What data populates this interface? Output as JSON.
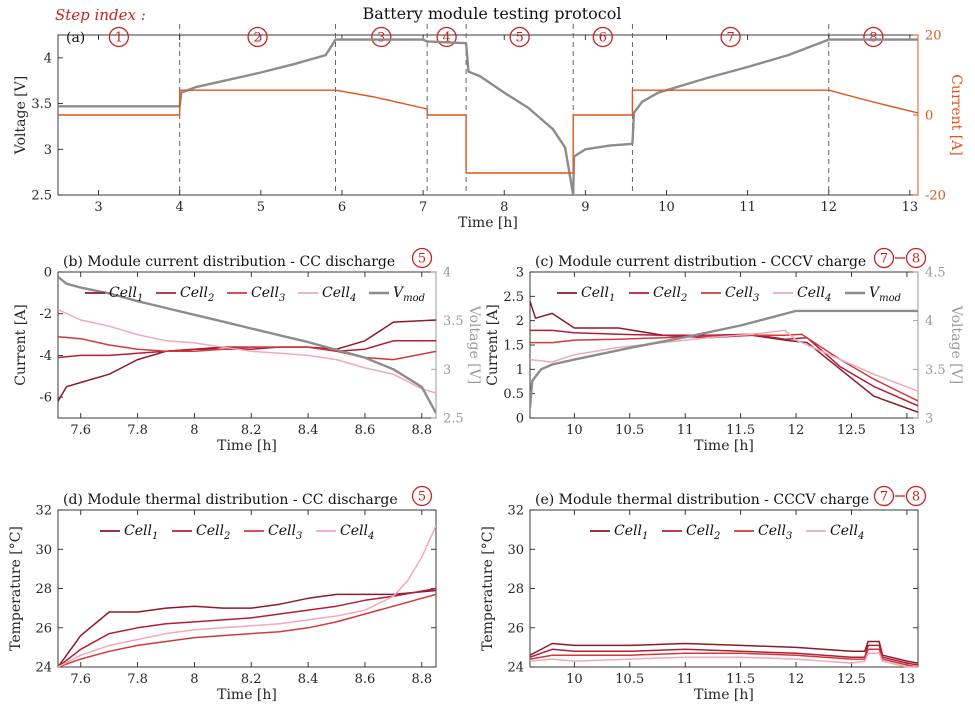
{
  "figure_title": "Battery module testing protocol",
  "step_index_label": "Step index :",
  "colors": {
    "voltage": "#8c8c8c",
    "current": "#e0541c",
    "cell1": "#8b1a2e",
    "cell2": "#b31d38",
    "cell3": "#d23a3a",
    "cell4": "#f0a9bd",
    "vmod": "#8c8c8c",
    "step_marker": "#cc1f1f",
    "frame": "#262626"
  },
  "chart_data": [
    {
      "id": "a",
      "type": "line",
      "panel_label": "(a)",
      "title": "",
      "xlabel": "Time [h]",
      "ylabel": "Voltage [V]",
      "ylabel_right": "Current [A]",
      "xlim": [
        2.5,
        13.1
      ],
      "ylim": [
        2.5,
        4.25
      ],
      "ylim_right": [
        -20,
        20
      ],
      "xticks": [
        3,
        4,
        5,
        6,
        7,
        8,
        9,
        10,
        11,
        12,
        13
      ],
      "yticks": [
        2.5,
        3,
        3.5,
        4
      ],
      "yticks_right": [
        -20,
        0,
        20
      ],
      "step_boundaries": [
        4,
        5.92,
        7.05,
        7.53,
        8.85,
        9.58,
        12
      ],
      "step_labels": [
        "1",
        "2",
        "3",
        "4",
        "5",
        "6",
        "7",
        "8"
      ],
      "series": [
        {
          "name": "Voltage",
          "axis": "left",
          "x": [
            2.5,
            4.0,
            4.02,
            4.2,
            4.6,
            5.0,
            5.4,
            5.8,
            5.92,
            6.3,
            7.0,
            7.05,
            7.53,
            7.56,
            7.7,
            8.0,
            8.3,
            8.6,
            8.75,
            8.85,
            8.86,
            9.0,
            9.3,
            9.58,
            9.6,
            9.7,
            9.9,
            10.5,
            11.0,
            11.5,
            12.0,
            13.1
          ],
          "y": [
            3.47,
            3.47,
            3.62,
            3.68,
            3.76,
            3.84,
            3.93,
            4.03,
            4.2,
            4.2,
            4.2,
            4.18,
            4.16,
            3.85,
            3.8,
            3.62,
            3.45,
            3.22,
            3.02,
            2.5,
            2.92,
            3.0,
            3.04,
            3.06,
            3.4,
            3.52,
            3.62,
            3.78,
            3.9,
            4.03,
            4.2,
            4.2
          ]
        },
        {
          "name": "Current",
          "axis": "right",
          "x": [
            2.5,
            4.0,
            4.0,
            5.92,
            5.92,
            6.4,
            7.05,
            7.05,
            7.53,
            7.53,
            8.85,
            8.85,
            9.58,
            9.58,
            12.0,
            12.0,
            12.5,
            13.1
          ],
          "y": [
            0,
            0,
            6.2,
            6.2,
            6.2,
            4.5,
            1.5,
            0,
            0,
            -14.5,
            -14.5,
            0,
            0,
            6.2,
            6.2,
            6.2,
            3.5,
            0.5
          ]
        }
      ]
    },
    {
      "id": "b",
      "type": "line",
      "panel_label": "(b)",
      "title": "Module current distribution - CC discharge",
      "step_badges": [
        "5"
      ],
      "xlabel": "Time [h]",
      "ylabel": "Current [A]",
      "ylabel_right": "Voltage [V]",
      "xlim": [
        7.52,
        8.85
      ],
      "ylim": [
        -7,
        0
      ],
      "ylim_right": [
        2.5,
        4
      ],
      "xticks": [
        7.6,
        7.8,
        8,
        8.2,
        8.4,
        8.6,
        8.8
      ],
      "xtick_labels": [
        "7.6",
        "7.8",
        "8",
        "8.2",
        "8.4",
        "8.6",
        "8.8"
      ],
      "yticks": [
        -6,
        -4,
        -2,
        0
      ],
      "yticks_right": [
        2.5,
        3,
        3.5,
        4
      ],
      "legend": [
        "Cell1",
        "Cell2",
        "Cell3",
        "Cell4",
        "Vmod"
      ],
      "series": [
        {
          "name": "Cell1",
          "axis": "left",
          "x": [
            7.52,
            7.55,
            7.6,
            7.7,
            7.8,
            7.9,
            8.0,
            8.1,
            8.2,
            8.3,
            8.4,
            8.5,
            8.6,
            8.7,
            8.85
          ],
          "y": [
            -6.2,
            -5.5,
            -5.3,
            -4.9,
            -4.2,
            -3.8,
            -3.7,
            -3.6,
            -3.6,
            -3.6,
            -3.6,
            -3.7,
            -3.3,
            -2.4,
            -2.3
          ]
        },
        {
          "name": "Cell2",
          "axis": "left",
          "x": [
            7.52,
            7.6,
            7.7,
            7.8,
            7.9,
            8.0,
            8.1,
            8.2,
            8.3,
            8.4,
            8.5,
            8.6,
            8.7,
            8.85
          ],
          "y": [
            -4.1,
            -4.0,
            -4.0,
            -3.9,
            -3.8,
            -3.7,
            -3.7,
            -3.7,
            -3.6,
            -3.6,
            -3.8,
            -3.7,
            -3.3,
            -3.3
          ]
        },
        {
          "name": "Cell3",
          "axis": "left",
          "x": [
            7.52,
            7.6,
            7.7,
            7.8,
            7.9,
            8.0,
            8.1,
            8.2,
            8.3,
            8.4,
            8.5,
            8.6,
            8.7,
            8.85
          ],
          "y": [
            -3.1,
            -3.2,
            -3.5,
            -3.7,
            -3.8,
            -3.8,
            -3.7,
            -3.6,
            -3.6,
            -3.6,
            -3.8,
            -4.1,
            -4.2,
            -3.8
          ]
        },
        {
          "name": "Cell4",
          "axis": "left",
          "x": [
            7.52,
            7.6,
            7.7,
            7.8,
            7.9,
            8.0,
            8.1,
            8.2,
            8.3,
            8.4,
            8.5,
            8.6,
            8.7,
            8.8,
            8.85
          ],
          "y": [
            -1.8,
            -2.3,
            -2.6,
            -3.0,
            -3.3,
            -3.4,
            -3.6,
            -3.8,
            -3.9,
            -4.0,
            -4.2,
            -4.6,
            -4.9,
            -5.6,
            -5.8
          ]
        },
        {
          "name": "Vmod",
          "axis": "right",
          "x": [
            7.52,
            7.55,
            7.6,
            7.7,
            7.8,
            7.9,
            8.0,
            8.1,
            8.2,
            8.3,
            8.4,
            8.5,
            8.6,
            8.7,
            8.8,
            8.85
          ],
          "y": [
            3.95,
            3.88,
            3.84,
            3.78,
            3.7,
            3.63,
            3.56,
            3.49,
            3.42,
            3.35,
            3.28,
            3.2,
            3.12,
            3.0,
            2.82,
            2.55
          ]
        }
      ]
    },
    {
      "id": "c",
      "type": "line",
      "panel_label": "(c)",
      "title": "Module current distribution - CCCV charge",
      "step_badges": [
        "7",
        "8"
      ],
      "xlabel": "Time [h]",
      "ylabel": "Current [A]",
      "ylabel_right": "Voltage [V]",
      "xlim": [
        9.6,
        13.1
      ],
      "ylim": [
        0,
        3
      ],
      "ylim_right": [
        3,
        4.5
      ],
      "xticks": [
        10,
        10.5,
        11,
        11.5,
        12,
        12.5,
        13
      ],
      "xtick_labels": [
        "10",
        "10.5",
        "11",
        "11.5",
        "12",
        "12.5",
        "13"
      ],
      "yticks": [
        0,
        0.5,
        1,
        1.5,
        2,
        2.5,
        3
      ],
      "ytick_labels": [
        "0",
        "0.5",
        "1",
        "1.5",
        "2",
        "2.5",
        "3"
      ],
      "yticks_right": [
        3,
        3.5,
        4,
        4.5
      ],
      "legend": [
        "Cell1",
        "Cell2",
        "Cell3",
        "Cell4",
        "Vmod"
      ],
      "series": [
        {
          "name": "Cell1",
          "axis": "left",
          "x": [
            9.6,
            9.65,
            9.8,
            10.0,
            10.4,
            10.8,
            11.2,
            11.6,
            11.9,
            12.1,
            12.4,
            12.7,
            13.1
          ],
          "y": [
            2.4,
            2.05,
            2.15,
            1.85,
            1.85,
            1.7,
            1.65,
            1.7,
            1.6,
            1.55,
            1.0,
            0.45,
            0.12
          ]
        },
        {
          "name": "Cell2",
          "axis": "left",
          "x": [
            9.6,
            9.8,
            10.0,
            10.4,
            10.8,
            11.2,
            11.6,
            11.9,
            12.1,
            12.4,
            12.7,
            13.1
          ],
          "y": [
            1.8,
            1.8,
            1.75,
            1.72,
            1.7,
            1.7,
            1.72,
            1.62,
            1.65,
            1.05,
            0.65,
            0.25
          ]
        },
        {
          "name": "Cell3",
          "axis": "left",
          "x": [
            9.6,
            9.8,
            10.0,
            10.4,
            10.8,
            11.2,
            11.6,
            11.9,
            12.05,
            12.4,
            12.7,
            13.1
          ],
          "y": [
            1.55,
            1.55,
            1.6,
            1.62,
            1.65,
            1.68,
            1.7,
            1.7,
            1.72,
            1.2,
            0.8,
            0.35
          ]
        },
        {
          "name": "Cell4",
          "axis": "left",
          "x": [
            9.6,
            9.8,
            10.0,
            10.4,
            10.8,
            11.2,
            11.6,
            11.9,
            12.0,
            12.4,
            12.7,
            13.1
          ],
          "y": [
            1.2,
            1.15,
            1.3,
            1.45,
            1.55,
            1.65,
            1.72,
            1.8,
            1.6,
            1.2,
            0.9,
            0.55
          ]
        },
        {
          "name": "Vmod",
          "axis": "right",
          "x": [
            9.6,
            9.62,
            9.7,
            9.8,
            10.0,
            10.5,
            11.0,
            11.5,
            12.0,
            13.1
          ],
          "y": [
            3.1,
            3.38,
            3.5,
            3.55,
            3.6,
            3.72,
            3.83,
            3.95,
            4.1,
            4.1
          ]
        }
      ]
    },
    {
      "id": "d",
      "type": "line",
      "panel_label": "(d)",
      "title": "Module thermal distribution - CC discharge",
      "step_badges": [
        "5"
      ],
      "xlabel": "Time [h]",
      "ylabel": "Temperature [°C]",
      "xlim": [
        7.52,
        8.85
      ],
      "ylim": [
        24,
        32
      ],
      "xticks": [
        7.6,
        7.8,
        8,
        8.2,
        8.4,
        8.6,
        8.8
      ],
      "xtick_labels": [
        "7.6",
        "7.8",
        "8",
        "8.2",
        "8.4",
        "8.6",
        "8.8"
      ],
      "yticks": [
        24,
        26,
        28,
        30,
        32
      ],
      "legend": [
        "Cell1",
        "Cell2",
        "Cell3",
        "Cell4"
      ],
      "series": [
        {
          "name": "Cell1",
          "x": [
            7.52,
            7.6,
            7.7,
            7.8,
            7.9,
            8.0,
            8.1,
            8.2,
            8.3,
            8.4,
            8.5,
            8.6,
            8.7,
            8.85
          ],
          "y": [
            24.0,
            25.6,
            26.8,
            26.8,
            27.0,
            27.1,
            27.0,
            27.0,
            27.2,
            27.5,
            27.7,
            27.7,
            27.7,
            27.9
          ]
        },
        {
          "name": "Cell2",
          "x": [
            7.52,
            7.6,
            7.7,
            7.8,
            7.9,
            8.0,
            8.1,
            8.2,
            8.3,
            8.4,
            8.5,
            8.6,
            8.7,
            8.85
          ],
          "y": [
            24.0,
            24.9,
            25.7,
            26.0,
            26.2,
            26.3,
            26.4,
            26.5,
            26.7,
            26.9,
            27.1,
            27.4,
            27.6,
            28.0
          ]
        },
        {
          "name": "Cell3",
          "x": [
            7.52,
            7.6,
            7.7,
            7.8,
            7.9,
            8.0,
            8.1,
            8.2,
            8.3,
            8.4,
            8.5,
            8.6,
            8.7,
            8.85
          ],
          "y": [
            24.0,
            24.4,
            24.8,
            25.1,
            25.3,
            25.5,
            25.6,
            25.7,
            25.8,
            26.0,
            26.3,
            26.7,
            27.1,
            27.7
          ]
        },
        {
          "name": "Cell4",
          "x": [
            7.52,
            7.6,
            7.7,
            7.8,
            7.9,
            8.0,
            8.1,
            8.2,
            8.3,
            8.4,
            8.5,
            8.6,
            8.7,
            8.75,
            8.8,
            8.85
          ],
          "y": [
            24.0,
            24.6,
            25.1,
            25.4,
            25.7,
            25.9,
            26.0,
            26.1,
            26.2,
            26.4,
            26.6,
            26.9,
            27.6,
            28.4,
            29.6,
            31.2
          ]
        }
      ]
    },
    {
      "id": "e",
      "type": "line",
      "panel_label": "(e)",
      "title": "Module thermal distribution - CCCV charge",
      "step_badges": [
        "7",
        "8"
      ],
      "xlabel": "Time [h]",
      "ylabel": "Temperature [°C]",
      "xlim": [
        9.6,
        13.1
      ],
      "ylim": [
        24,
        32
      ],
      "xticks": [
        10,
        10.5,
        11,
        11.5,
        12,
        12.5,
        13
      ],
      "xtick_labels": [
        "10",
        "10.5",
        "11",
        "11.5",
        "12",
        "12.5",
        "13"
      ],
      "yticks": [
        24,
        26,
        28,
        30,
        32
      ],
      "legend": [
        "Cell1",
        "Cell2",
        "Cell3",
        "Cell4"
      ],
      "series": [
        {
          "name": "Cell1",
          "x": [
            9.6,
            9.8,
            10.0,
            10.5,
            11.0,
            11.5,
            12.0,
            12.5,
            12.62,
            12.65,
            12.75,
            12.78,
            13.0,
            13.1
          ],
          "y": [
            24.6,
            25.2,
            25.1,
            25.1,
            25.2,
            25.1,
            25.0,
            24.8,
            24.8,
            25.3,
            25.3,
            24.6,
            24.3,
            24.2
          ]
        },
        {
          "name": "Cell2",
          "x": [
            9.6,
            9.8,
            10.0,
            10.5,
            11.0,
            11.5,
            12.0,
            12.5,
            12.62,
            12.65,
            12.75,
            12.78,
            13.0,
            13.1
          ],
          "y": [
            24.5,
            24.9,
            24.8,
            24.8,
            24.9,
            24.8,
            24.7,
            24.5,
            24.5,
            25.1,
            25.1,
            24.5,
            24.2,
            24.1
          ]
        },
        {
          "name": "Cell3",
          "x": [
            9.6,
            9.8,
            10.0,
            10.5,
            11.0,
            11.5,
            12.0,
            12.5,
            12.62,
            12.65,
            12.75,
            12.78,
            13.0,
            13.1
          ],
          "y": [
            24.4,
            24.6,
            24.6,
            24.6,
            24.7,
            24.7,
            24.6,
            24.4,
            24.4,
            24.9,
            24.9,
            24.4,
            24.1,
            24.0
          ]
        },
        {
          "name": "Cell4",
          "x": [
            9.6,
            9.8,
            10.0,
            10.5,
            11.0,
            11.5,
            12.0,
            12.5,
            12.62,
            12.65,
            12.75,
            12.78,
            13.0,
            13.1
          ],
          "y": [
            24.3,
            24.4,
            24.3,
            24.4,
            24.5,
            24.5,
            24.4,
            24.2,
            24.3,
            24.7,
            24.7,
            24.3,
            24.0,
            24.0
          ]
        }
      ]
    }
  ]
}
